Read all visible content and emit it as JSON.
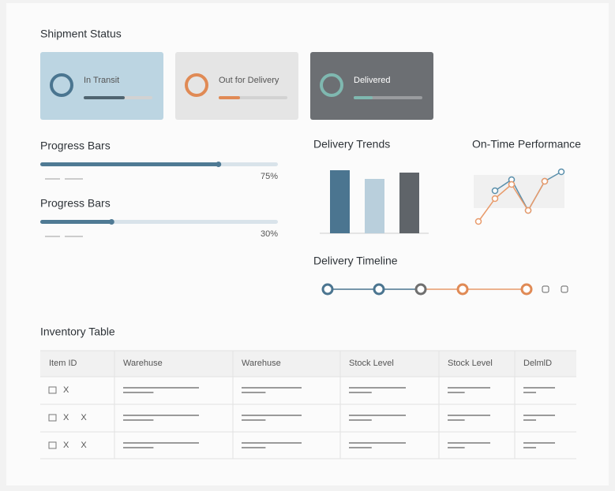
{
  "header": {
    "title": "Shipment Status"
  },
  "cards": [
    {
      "label": "In Transit",
      "color": "#4a7590"
    },
    {
      "label": "Out for Delivery",
      "color": "#e08a55"
    },
    {
      "label": "Delivered",
      "color": "#7fb8b0"
    }
  ],
  "progress": [
    {
      "title": "Progress Bars",
      "value": {
        "value": 75,
        "label": "75%"
      },
      "color": "#4f7a94"
    },
    {
      "title": "Progress Bars",
      "value": {
        "value": 30,
        "label": "30%"
      },
      "color": "#4f7a94"
    }
  ],
  "chart_data": [
    {
      "type": "bar",
      "title": "Delivery Trends",
      "values": [
        80,
        69,
        77
      ],
      "colors": [
        "#4b7590",
        "#b9cfdc",
        "#5f6469"
      ]
    },
    {
      "type": "line",
      "title": "On-Time Performance",
      "series": [
        {
          "color": "#5a8fab",
          "values": [
            null,
            58,
            72,
            33,
            70,
            82
          ]
        },
        {
          "color": "#e89a6a",
          "values": [
            19,
            48,
            66,
            33,
            70,
            null
          ]
        }
      ]
    }
  ],
  "timeline": {
    "title": "Delivery Timeline"
  },
  "table": {
    "title": "Inventory Table",
    "header": [
      "Item ID",
      "Warehuse",
      "Warehuse",
      "Stock Level",
      "Stock Level",
      "DelmlD"
    ],
    "rows": [
      [
        "X"
      ],
      [
        "X X"
      ],
      [
        "X X"
      ]
    ]
  }
}
